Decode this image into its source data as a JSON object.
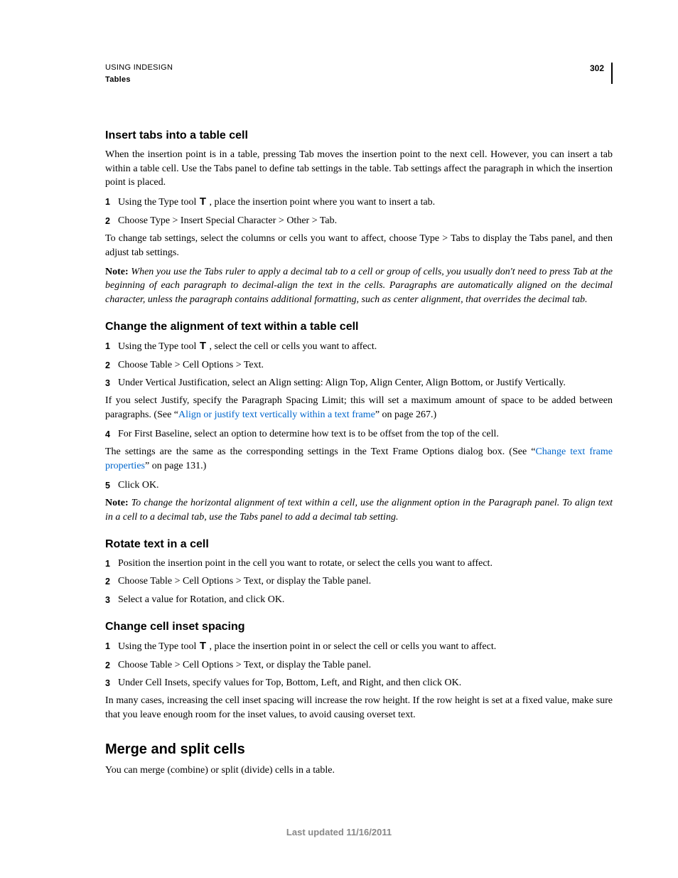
{
  "header": {
    "title": "USING INDESIGN",
    "section": "Tables",
    "page_number": "302"
  },
  "s1": {
    "heading": "Insert tabs into a table cell",
    "intro": "When the insertion point is in a table, pressing Tab moves the insertion point to the next cell. However, you can insert a tab within a table cell. Use the Tabs panel to define tab settings in the table. Tab settings affect the paragraph in which the insertion point is placed.",
    "step1a": "Using the Type tool ",
    "step1b": " , place the insertion point where you want to insert a tab.",
    "step2": "Choose Type > Insert Special Character > Other > Tab.",
    "para2": "To change tab settings, select the columns or cells you want to affect, choose Type > Tabs to display the Tabs panel, and then adjust tab settings.",
    "note_label": "Note:",
    "note": " When you use the Tabs ruler to apply a decimal tab to a cell or group of cells, you usually don't need to press Tab at the beginning of each paragraph to decimal-align the text in the cells. Paragraphs are automatically aligned on the decimal character, unless the paragraph contains additional formatting, such as center alignment, that overrides the decimal tab."
  },
  "s2": {
    "heading": "Change the alignment of text within a table cell",
    "step1a": "Using the Type tool ",
    "step1b": " , select the cell or cells you want to affect.",
    "step2": "Choose Table > Cell Options > Text.",
    "step3": "Under Vertical Justification, select an Align setting: Align Top, Align Center, Align Bottom, or Justify Vertically.",
    "para1a": "If you select Justify, specify the Paragraph Spacing Limit; this will set a maximum amount of space to be added between paragraphs. (See “",
    "link1": "Align or justify text vertically within a text frame",
    "para1b": "” on page 267.)",
    "step4": "For First Baseline, select an option to determine how text is to be offset from the top of the cell.",
    "para2a": "The settings are the same as the corresponding settings in the Text Frame Options dialog box. (See “",
    "link2": "Change text frame properties",
    "para2b": "” on page 131.)",
    "step5": "Click OK.",
    "note_label": "Note:",
    "note": " To change the horizontal alignment of text within a cell, use the alignment option in the Paragraph panel. To align text in a cell to a decimal tab, use the Tabs panel to add a decimal tab setting."
  },
  "s3": {
    "heading": "Rotate text in a cell",
    "step1": "Position the insertion point in the cell you want to rotate, or select the cells you want to affect.",
    "step2": "Choose Table > Cell Options > Text, or display the Table panel.",
    "step3": "Select a value for Rotation, and click OK."
  },
  "s4": {
    "heading": "Change cell inset spacing",
    "step1a": "Using the Type tool ",
    "step1b": " , place the insertion point in or select the cell or cells you want to affect.",
    "step2": "Choose Table > Cell Options > Text, or display the Table panel.",
    "step3": "Under Cell Insets, specify values for Top, Bottom, Left, and Right, and then click OK.",
    "para": "In many cases, increasing the cell inset spacing will increase the row height. If the row height is set at a fixed value, make sure that you leave enough room for the inset values, to avoid causing overset text."
  },
  "s5": {
    "heading": "Merge and split cells",
    "para": "You can merge (combine) or split (divide) cells in a table."
  },
  "footer": "Last updated 11/16/2011",
  "type_glyph": "T",
  "nums": {
    "n1": "1",
    "n2": "2",
    "n3": "3",
    "n4": "4",
    "n5": "5"
  }
}
